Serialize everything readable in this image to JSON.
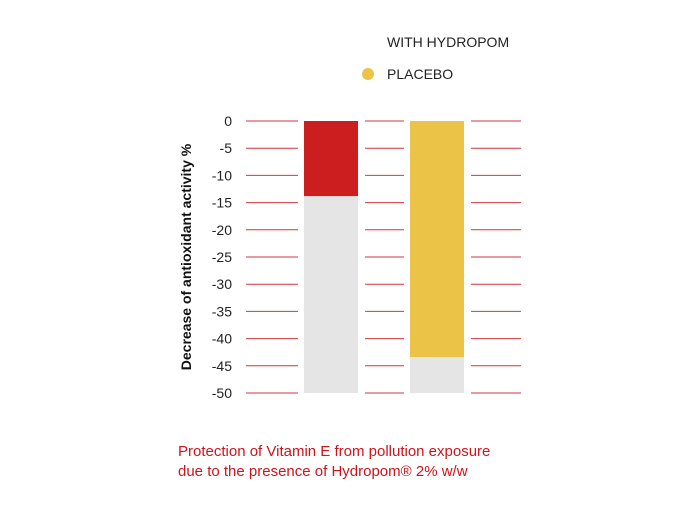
{
  "chart_data": {
    "type": "bar",
    "categories": [
      "WITH HYDROPOM",
      "PLACEBO"
    ],
    "values": [
      -13.8,
      -43.4
    ],
    "ylabel": "Decrease of antioxidant activity %",
    "xlabel": "",
    "ylim": [
      -50,
      0
    ],
    "yticks": [
      "0",
      "-5",
      "-10",
      "-15",
      "-20",
      "-25",
      "-30",
      "-35",
      "-40",
      "-45",
      "-50"
    ],
    "grid": true,
    "legend": [
      {
        "label": "WITH HYDROPOM",
        "color": "#ffffff"
      },
      {
        "label": "PLACEBO",
        "color": "#ebc447"
      }
    ],
    "legend_placement": "top-right",
    "bar_colors": [
      "#cc1e1e",
      "#ebc447"
    ],
    "background_bar_color": "#e5e5e5",
    "grid_color": "#d0131b",
    "caption": [
      "Protection of Vitamin E from pollution exposure",
      "due to the presence of Hydropom® 2% w/w"
    ]
  }
}
